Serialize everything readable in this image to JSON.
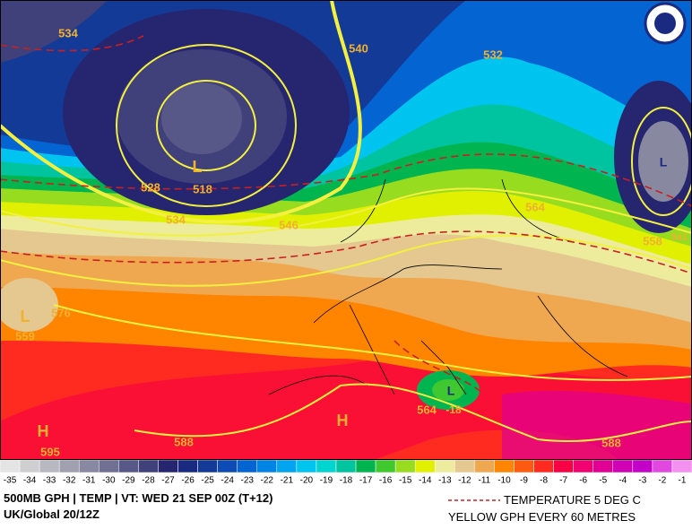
{
  "map": {
    "contour_labels": [
      "534",
      "540",
      "532",
      "L",
      "518",
      "528",
      "534",
      "546",
      "564",
      "558",
      "L",
      "541",
      "576",
      "L",
      "559",
      "L",
      "564",
      "-18",
      "588",
      "H",
      "595",
      "H",
      "588"
    ],
    "colorbar": [
      {
        "label": "-35",
        "color": "#e4e4e4"
      },
      {
        "label": "-34",
        "color": "#cfcfd2"
      },
      {
        "label": "-33",
        "color": "#b8b8c0"
      },
      {
        "label": "-32",
        "color": "#a0a0b0"
      },
      {
        "label": "-31",
        "color": "#8888a0"
      },
      {
        "label": "-30",
        "color": "#707094"
      },
      {
        "label": "-29",
        "color": "#585888"
      },
      {
        "label": "-28",
        "color": "#40407a"
      },
      {
        "label": "-27",
        "color": "#262670"
      },
      {
        "label": "-26",
        "color": "#1a2a80"
      },
      {
        "label": "-25",
        "color": "#143a98"
      },
      {
        "label": "-24",
        "color": "#0c4cb4"
      },
      {
        "label": "-23",
        "color": "#0464d2"
      },
      {
        "label": "-22",
        "color": "#0084e4"
      },
      {
        "label": "-21",
        "color": "#00a4f0"
      },
      {
        "label": "-20",
        "color": "#00c4f0"
      },
      {
        "label": "-19",
        "color": "#00d4d0"
      },
      {
        "label": "-18",
        "color": "#00c4a0"
      },
      {
        "label": "-17",
        "color": "#00b450"
      },
      {
        "label": "-16",
        "color": "#40c830"
      },
      {
        "label": "-15",
        "color": "#98dc20"
      },
      {
        "label": "-14",
        "color": "#e0f000"
      },
      {
        "label": "-13",
        "color": "#ecec9c"
      },
      {
        "label": "-12",
        "color": "#e4c890"
      },
      {
        "label": "-11",
        "color": "#f0a850"
      },
      {
        "label": "-10",
        "color": "#ff8400"
      },
      {
        "label": "-9",
        "color": "#ff5a10"
      },
      {
        "label": "-8",
        "color": "#ff2a20"
      },
      {
        "label": "-7",
        "color": "#f80044"
      },
      {
        "label": "-6",
        "color": "#f00070"
      },
      {
        "label": "-5",
        "color": "#e00094"
      },
      {
        "label": "-4",
        "color": "#d000b4"
      },
      {
        "label": "-3",
        "color": "#c400c8"
      },
      {
        "label": "-2",
        "color": "#e048e0"
      },
      {
        "label": "-1",
        "color": "#f490f0"
      }
    ]
  },
  "footer": {
    "title": "500MB GPH | TEMP |  VT: WED 21 SEP 00Z (T+12)",
    "model": "UK/Global 20/12Z",
    "legend_temperature": "TEMPERATURE 5 DEG C",
    "legend_gph": "YELLOW GPH EVERY 60 METRES"
  }
}
